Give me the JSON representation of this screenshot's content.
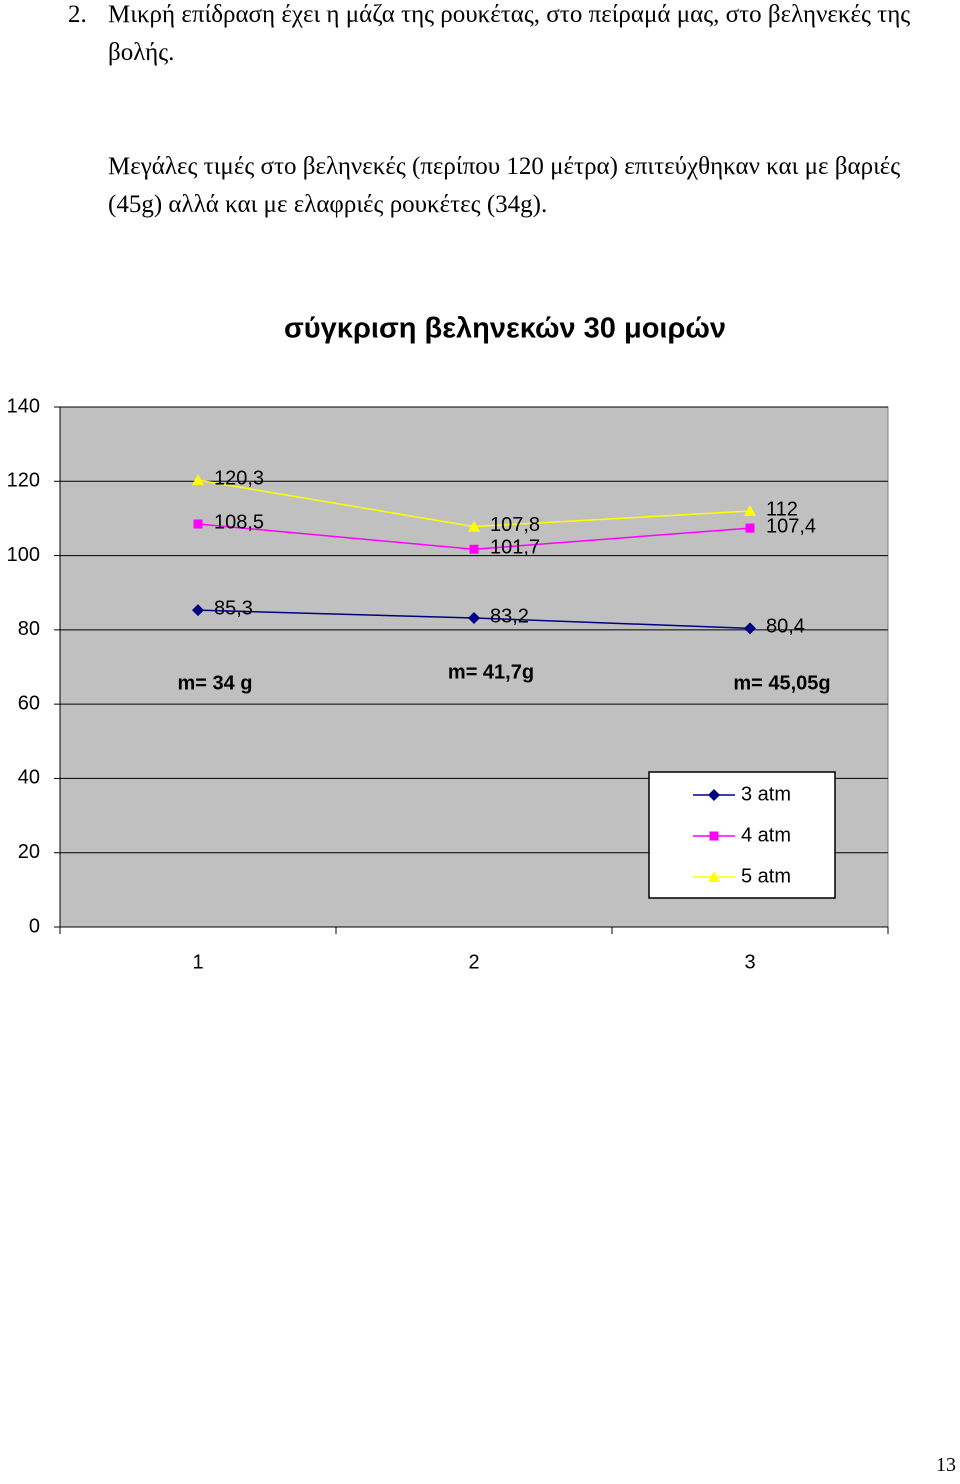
{
  "document": {
    "list_number": "2.",
    "paragraphs": [
      "Μικρή επίδραση έχει η μάζα της ρουκέτας, στο πείραμά μας, στο βεληνεκές της βολής.",
      "Μεγάλες τιμές στο βεληνεκές (περίπου 120 μέτρα) επιτεύχθηκαν και με βαριές (45g) αλλά και με ελαφριές ρουκέτες (34g)."
    ],
    "page_number": "13"
  },
  "chart_data": {
    "type": "line",
    "title": "σύγκριση βεληνεκών 30 μοιρών",
    "categories": [
      "1",
      "2",
      "3"
    ],
    "series": [
      {
        "name": "3 atm",
        "color": "#000080",
        "marker": "diamond",
        "values": [
          85.3,
          83.2,
          80.4
        ],
        "value_labels": [
          "85,3",
          "83,2",
          "80,4"
        ]
      },
      {
        "name": "4 atm",
        "color": "#ff00ff",
        "marker": "square",
        "values": [
          108.5,
          101.7,
          107.4
        ],
        "value_labels": [
          "108,5",
          "101,7",
          "107,4"
        ]
      },
      {
        "name": "5 atm",
        "color": "#ffff00",
        "marker": "triangle",
        "values": [
          120.3,
          107.8,
          112
        ],
        "value_labels": [
          "120,3",
          "107,8",
          "112"
        ]
      }
    ],
    "annotations": [
      "m= 34 g",
      "m= 41,7g",
      "m= 45,05g"
    ],
    "ylim": [
      0,
      140
    ],
    "yticks": [
      0,
      20,
      40,
      60,
      80,
      100,
      120,
      140
    ],
    "grid": true,
    "legend": "bottom-right",
    "plot_background": "#c0c0c0"
  }
}
